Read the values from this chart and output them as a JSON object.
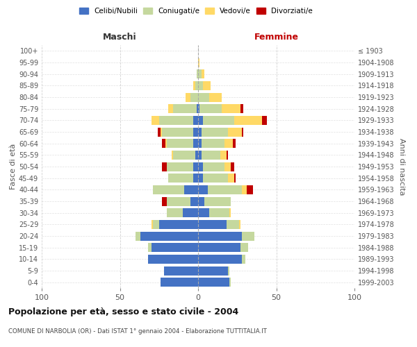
{
  "age_groups": [
    "0-4",
    "5-9",
    "10-14",
    "15-19",
    "20-24",
    "25-29",
    "30-34",
    "35-39",
    "40-44",
    "45-49",
    "50-54",
    "55-59",
    "60-64",
    "65-69",
    "70-74",
    "75-79",
    "80-84",
    "85-89",
    "90-94",
    "95-99",
    "100+"
  ],
  "birth_years": [
    "1999-2003",
    "1994-1998",
    "1989-1993",
    "1984-1988",
    "1979-1983",
    "1974-1978",
    "1969-1973",
    "1964-1968",
    "1959-1963",
    "1954-1958",
    "1949-1953",
    "1944-1948",
    "1939-1943",
    "1934-1938",
    "1929-1933",
    "1924-1928",
    "1919-1923",
    "1914-1918",
    "1909-1913",
    "1904-1908",
    "≤ 1903"
  ],
  "males": {
    "celibi": [
      24,
      22,
      32,
      30,
      37,
      25,
      10,
      5,
      9,
      3,
      3,
      2,
      3,
      3,
      3,
      1,
      0,
      0,
      0,
      0,
      0
    ],
    "coniugati": [
      0,
      0,
      0,
      2,
      3,
      4,
      10,
      15,
      20,
      16,
      17,
      14,
      17,
      20,
      22,
      15,
      5,
      2,
      1,
      0,
      0
    ],
    "vedovi": [
      0,
      0,
      0,
      0,
      0,
      1,
      0,
      0,
      0,
      0,
      0,
      1,
      1,
      1,
      5,
      3,
      3,
      1,
      0,
      0,
      0
    ],
    "divorziati": [
      0,
      0,
      0,
      0,
      0,
      0,
      0,
      3,
      0,
      0,
      3,
      0,
      2,
      2,
      0,
      0,
      0,
      0,
      0,
      0,
      0
    ]
  },
  "females": {
    "nubili": [
      20,
      19,
      28,
      27,
      28,
      18,
      7,
      4,
      6,
      3,
      3,
      2,
      2,
      2,
      3,
      1,
      0,
      0,
      0,
      0,
      0
    ],
    "coniugate": [
      1,
      1,
      2,
      5,
      8,
      8,
      13,
      17,
      22,
      16,
      14,
      12,
      15,
      17,
      20,
      14,
      7,
      3,
      2,
      0,
      0
    ],
    "vedove": [
      0,
      0,
      0,
      0,
      0,
      1,
      1,
      0,
      3,
      4,
      4,
      4,
      5,
      9,
      18,
      12,
      8,
      5,
      2,
      1,
      0
    ],
    "divorziate": [
      0,
      0,
      0,
      0,
      0,
      0,
      0,
      0,
      4,
      1,
      2,
      1,
      2,
      1,
      3,
      2,
      0,
      0,
      0,
      0,
      0
    ]
  },
  "colors": {
    "celibi_nubili": "#4472c4",
    "coniugati": "#c5d89e",
    "vedovi": "#ffd966",
    "divorziati": "#c00000"
  },
  "title": "Popolazione per età, sesso e stato civile - 2004",
  "subtitle": "COMUNE DI NARBOLIA (OR) - Dati ISTAT 1° gennaio 2004 - Elaborazione TUTTITALIA.IT",
  "xlabel_left": "Maschi",
  "xlabel_right": "Femmine",
  "ylabel_left": "Fasce di età",
  "ylabel_right": "Anni di nascita",
  "xlim": 100,
  "legend_labels": [
    "Celibi/Nubili",
    "Coniugati/e",
    "Vedovi/e",
    "Divorziati/e"
  ],
  "bg_color": "#ffffff",
  "grid_color": "#cccccc"
}
